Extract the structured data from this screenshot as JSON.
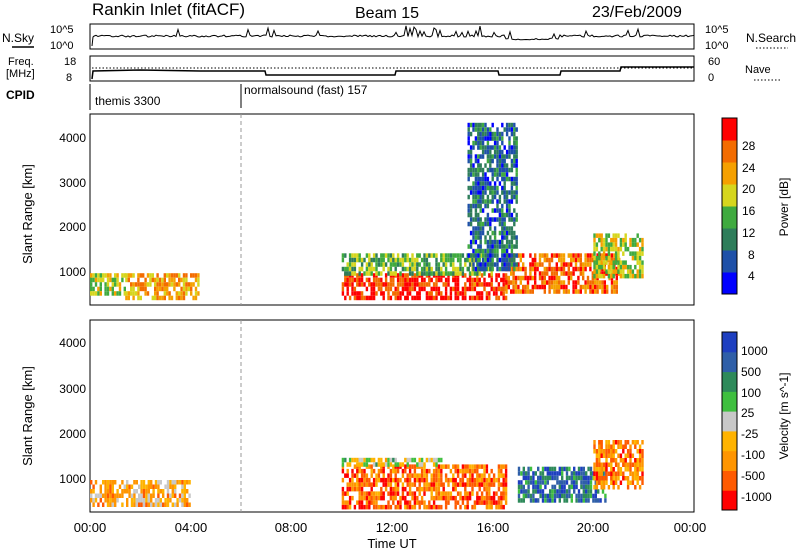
{
  "header": {
    "title": "Rankin Inlet (fitACF)",
    "beam": "Beam 15",
    "date": "23/Feb/2009"
  },
  "top_panels": {
    "nsky_label": "N.Sky",
    "nsky_ticks": [
      "10^5",
      "10^0"
    ],
    "nsearch_label": "N.Search",
    "freq_label": "Freq.",
    "freq_unit": "[MHz]",
    "freq_ticks": [
      "18",
      "8"
    ],
    "nave_ticks": [
      "60",
      "0"
    ],
    "nave_label": "Nave",
    "cpid_label": "CPID",
    "cpid_segments": [
      {
        "name": "themis 3300",
        "start_h": 0
      },
      {
        "name": "normalsound (fast) 157",
        "start_h": 6
      }
    ]
  },
  "x_axis": {
    "label": "Time UT",
    "ticks": [
      "00:00",
      "04:00",
      "08:00",
      "12:00",
      "16:00",
      "20:00",
      "00:00"
    ],
    "range_h": [
      0,
      24
    ]
  },
  "chart_data": [
    {
      "type": "heatmap",
      "panel": "power",
      "ylabel": "Slant Range [km]",
      "y_ticks": [
        "1000",
        "2000",
        "3000",
        "4000"
      ],
      "ylim": [
        180,
        4500
      ],
      "colorbar_label": "Power [dB]",
      "colorbar_ticks": [
        "28",
        "24",
        "20",
        "16",
        "12",
        "8",
        "4"
      ],
      "colorbar_colors": [
        "#0000ff",
        "#1e50a8",
        "#2e7d5a",
        "#3faa3f",
        "#d6d61e",
        "#f5a000",
        "#f36c00",
        "#ff0000"
      ],
      "regions": [
        {
          "t0": 0.0,
          "t1": 1.4,
          "r0": 400,
          "r1": 900,
          "level": 0.55
        },
        {
          "t0": 1.4,
          "t1": 4.3,
          "r0": 350,
          "r1": 900,
          "level": 0.7
        },
        {
          "t0": 10.0,
          "t1": 16.5,
          "r0": 300,
          "r1": 900,
          "level": 0.92
        },
        {
          "t0": 10.0,
          "t1": 16.0,
          "r0": 900,
          "r1": 1350,
          "level": 0.45
        },
        {
          "t0": 16.5,
          "t1": 21.0,
          "r0": 500,
          "r1": 1350,
          "level": 0.8
        },
        {
          "t0": 20.0,
          "t1": 22.0,
          "r0": 800,
          "r1": 1800,
          "level": 0.55
        },
        {
          "t0": 15.0,
          "t1": 17.0,
          "r0": 1000,
          "r1": 4300,
          "level": 0.25
        }
      ]
    },
    {
      "type": "heatmap",
      "panel": "velocity",
      "ylabel": "Slant Range [km]",
      "y_ticks": [
        "1000",
        "2000",
        "3000",
        "4000"
      ],
      "ylim": [
        180,
        4500
      ],
      "colorbar_label": "Velocity [m s^-1]",
      "colorbar_ticks": [
        "1000",
        "500",
        "100",
        "25",
        "-25",
        "-100",
        "-500",
        "-1000"
      ],
      "colorbar_colors": [
        "#ff0000",
        "#ff5a00",
        "#ff9500",
        "#ffb300",
        "#c8c8c8",
        "#3fbf3f",
        "#2e8a5a",
        "#2f5fa8",
        "#1e3fc0"
      ],
      "regions": [
        {
          "t0": 0.0,
          "t1": 4.0,
          "r0": 350,
          "r1": 900,
          "level": 0.35
        },
        {
          "t0": 10.0,
          "t1": 16.5,
          "r0": 300,
          "r1": 1250,
          "level": 0.2
        },
        {
          "t0": 10.0,
          "t1": 14.0,
          "r0": 1200,
          "r1": 1400,
          "level": 0.5
        },
        {
          "t0": 17.0,
          "t1": 20.5,
          "r0": 400,
          "r1": 1200,
          "level": 0.8
        },
        {
          "t0": 20.0,
          "t1": 22.0,
          "r0": 700,
          "r1": 1800,
          "level": 0.25
        }
      ]
    }
  ]
}
